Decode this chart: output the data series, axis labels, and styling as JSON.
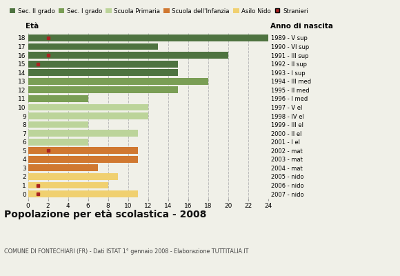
{
  "ages": [
    18,
    17,
    16,
    15,
    14,
    13,
    12,
    11,
    10,
    9,
    8,
    7,
    6,
    5,
    4,
    3,
    2,
    1,
    0
  ],
  "years": [
    "1989 - V sup",
    "1990 - VI sup",
    "1991 - III sup",
    "1992 - II sup",
    "1993 - I sup",
    "1994 - III med",
    "1995 - II med",
    "1996 - I med",
    "1997 - V el",
    "1998 - IV el",
    "1999 - III el",
    "2000 - II el",
    "2001 - I el",
    "2002 - mat",
    "2003 - mat",
    "2004 - mat",
    "2005 - nido",
    "2006 - nido",
    "2007 - nido"
  ],
  "bar_values": [
    24,
    13,
    20,
    15,
    15,
    18,
    15,
    6,
    12,
    12,
    6,
    11,
    6,
    11,
    11,
    7,
    9,
    8,
    11
  ],
  "bar_colors": [
    "#4e7340",
    "#4e7340",
    "#4e7340",
    "#4e7340",
    "#4e7340",
    "#7a9e55",
    "#7a9e55",
    "#7a9e55",
    "#bcd49a",
    "#bcd49a",
    "#bcd49a",
    "#bcd49a",
    "#bcd49a",
    "#d07830",
    "#d07830",
    "#d07830",
    "#f0d070",
    "#f0d070",
    "#f0d070"
  ],
  "stranieri_x": [
    2,
    0,
    2,
    1,
    0,
    0,
    0,
    0,
    0,
    0,
    0,
    0,
    0,
    2,
    0,
    0,
    0,
    1,
    1
  ],
  "legend_labels": [
    "Sec. II grado",
    "Sec. I grado",
    "Scuola Primaria",
    "Scuola dell'Infanzia",
    "Asilo Nido",
    "Stranieri"
  ],
  "legend_colors": [
    "#4e7340",
    "#7a9e55",
    "#bcd49a",
    "#d07830",
    "#f0d070",
    "#aa2222"
  ],
  "title": "Popolazione per età scolastica - 2008",
  "subtitle": "COMUNE DI FONTECHIARI (FR) - Dati ISTAT 1° gennaio 2008 - Elaborazione TUTTITALIA.IT",
  "xlabel_age": "Età",
  "xlabel_year": "Anno di nascita",
  "xlim": [
    0,
    24
  ],
  "xticks": [
    0,
    2,
    4,
    6,
    8,
    10,
    12,
    14,
    16,
    18,
    20,
    22,
    24
  ],
  "background_color": "#f0f0e8",
  "bar_bg_color": "#f0f0e8",
  "grid_color": "#bbbbbb"
}
